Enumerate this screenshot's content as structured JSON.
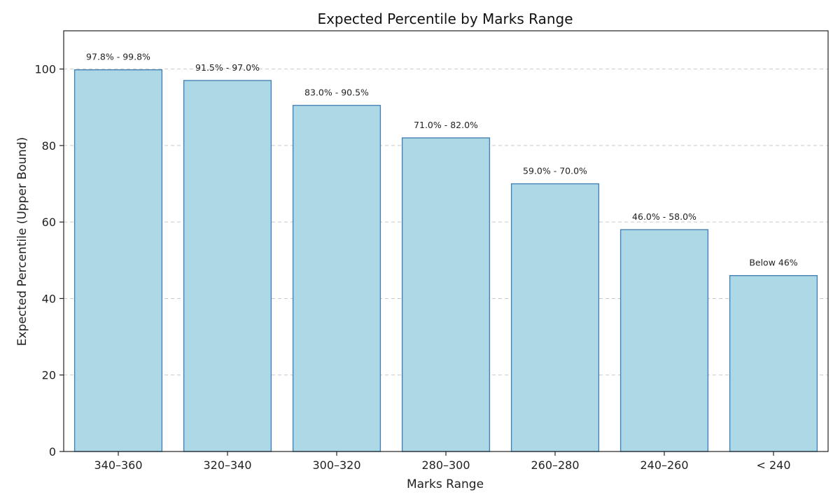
{
  "chart_data": {
    "type": "bar",
    "title": "Expected Percentile by Marks Range",
    "xlabel": "Marks Range",
    "ylabel": "Expected Percentile (Upper Bound)",
    "categories": [
      "340–360",
      "320–340",
      "300–320",
      "280–300",
      "260–280",
      "240–260",
      "< 240"
    ],
    "values": [
      99.8,
      97.0,
      90.5,
      82.0,
      70.0,
      58.0,
      46.0
    ],
    "bar_labels": [
      "97.8% - 99.8%",
      "91.5% - 97.0%",
      "83.0% - 90.5%",
      "71.0% - 82.0%",
      "59.0% - 70.0%",
      "46.0% - 58.0%",
      "Below 46%"
    ],
    "ylim": [
      0,
      110
    ],
    "yticks": [
      0,
      20,
      40,
      60,
      80,
      100
    ],
    "grid": "y dashed",
    "colors": {
      "bar_fill": "#add8e6",
      "bar_edge": "#4682b4"
    }
  }
}
